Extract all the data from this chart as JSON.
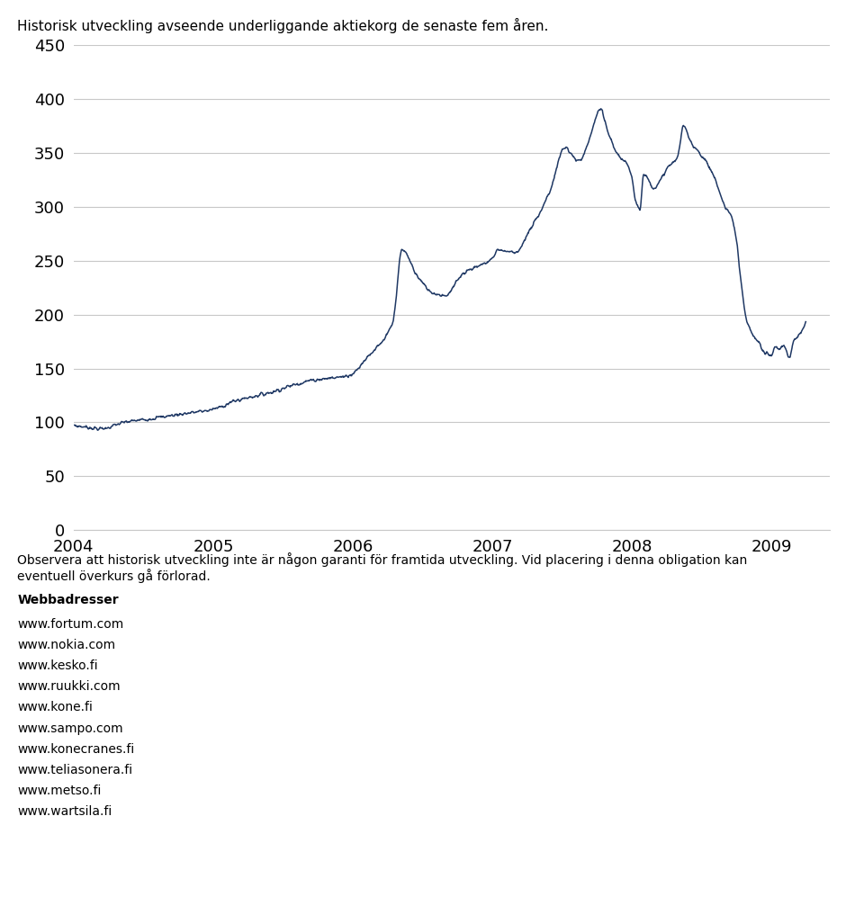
{
  "title": "Historisk utveckling avseende underliggande aktiekorg de senaste fem åren.",
  "line_color": "#1F3864",
  "background_color": "#ffffff",
  "grid_color": "#c8c8c8",
  "ylim": [
    0,
    450
  ],
  "yticks": [
    0,
    50,
    100,
    150,
    200,
    250,
    300,
    350,
    400,
    450
  ],
  "xtick_years": [
    "2004",
    "2005",
    "2006",
    "2007",
    "2008",
    "2009"
  ],
  "footer_text": "Observera att historisk utveckling inte är någon garanti för framtida utveckling. Vid placering i denna obligation kan eventuell överkurs gå förlorad.",
  "webbadresser_title": "Webbadresser",
  "websites": [
    "www.fortum.com",
    "www.nokia.com",
    "www.kesko.fi",
    "www.ruukki.com",
    "www.kone.fi",
    "www.sampo.com",
    "www.konecranes.fi",
    "www.teliasonera.fi",
    "www.metso.fi",
    "www.wartsila.fi"
  ],
  "title_fontsize": 11,
  "axis_fontsize": 13,
  "footer_fontsize": 10,
  "website_fontsize": 10
}
